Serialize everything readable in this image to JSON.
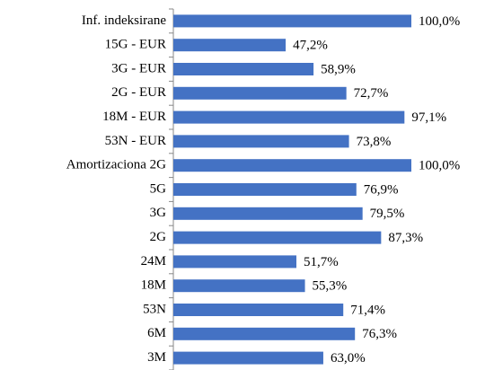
{
  "chart_data": {
    "type": "bar",
    "orientation": "horizontal",
    "categories": [
      "Inf. indeksirane",
      "15G - EUR",
      "3G - EUR",
      "2G - EUR",
      "18M - EUR",
      "53N - EUR",
      "Amortizaciona 2G",
      "5G",
      "3G",
      "2G",
      "24M",
      "18M",
      "53N",
      "6M",
      "3M"
    ],
    "values": [
      100.0,
      47.2,
      58.9,
      72.7,
      97.1,
      73.8,
      100.0,
      76.9,
      79.5,
      87.3,
      51.7,
      55.3,
      71.4,
      76.3,
      63.0
    ],
    "value_labels": [
      "100,0%",
      "47,2%",
      "58,9%",
      "72,7%",
      "97,1%",
      "73,8%",
      "100,0%",
      "76,9%",
      "79,5%",
      "87,3%",
      "51,7%",
      "55,3%",
      "71,4%",
      "76,3%",
      "63,0%"
    ],
    "color": "#4472c4",
    "xlim": [
      0,
      100
    ]
  }
}
